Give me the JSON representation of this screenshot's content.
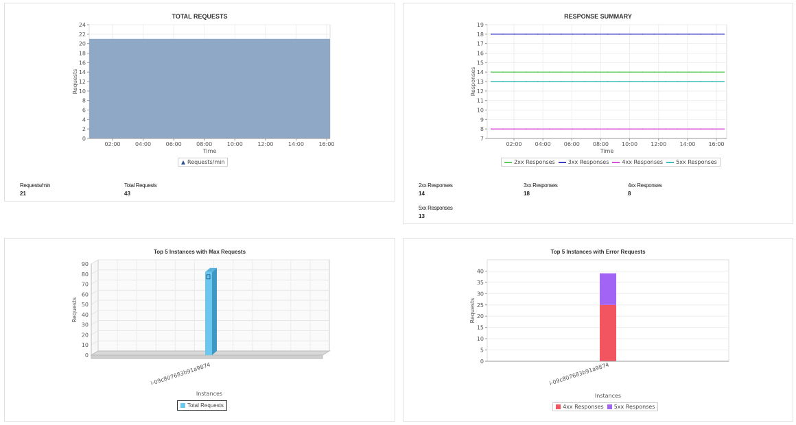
{
  "panels": {
    "total_requests": {
      "title": "TOTAL REQUESTS",
      "legend": "Requests/min",
      "stats": [
        {
          "label": "Requests/min",
          "value": "21"
        },
        {
          "label": "Total Requests",
          "value": "43"
        }
      ]
    },
    "response_summary": {
      "title": "RESPONSE SUMMARY",
      "legend": [
        "2xx Responses",
        "3xx Responses",
        "4xx Responses",
        "5xx Responses"
      ],
      "stats": [
        {
          "label": "2xx Responses",
          "value": "14"
        },
        {
          "label": "3xx Responses",
          "value": "18"
        },
        {
          "label": "4xx Responses",
          "value": "8"
        },
        {
          "label": "5xx Responses",
          "value": "13"
        }
      ]
    },
    "max_requests": {
      "title": "Top 5 Instances with Max Requests",
      "legend": "Total Requests"
    },
    "error_requests": {
      "title": "Top 5 Instances with Error Requests",
      "legend": [
        "4xx Responses",
        "5xx Responses"
      ]
    }
  },
  "colors": {
    "area": "#8fa8c5",
    "c2xx": "#5ccd5c",
    "c3xx": "#3d3dc8",
    "c4xx": "#d94fd9",
    "c5xx": "#40bdb8",
    "bar3d": "#6cc7ef",
    "err4xx": "#f2555f",
    "err5xx": "#a264f5"
  },
  "chart_data": [
    {
      "type": "area",
      "title": "TOTAL REQUESTS",
      "xlabel": "Time",
      "ylabel": "Requests",
      "x_ticks": [
        "02:00",
        "04:00",
        "06:00",
        "08:00",
        "10:00",
        "12:00",
        "14:00",
        "16:00"
      ],
      "ylim": [
        0,
        24
      ],
      "y_ticks": [
        0,
        2,
        4,
        6,
        8,
        10,
        12,
        14,
        16,
        18,
        20,
        22,
        24
      ],
      "series": [
        {
          "name": "Requests/min",
          "value": 21
        }
      ],
      "grid": true,
      "legend": "bottom"
    },
    {
      "type": "line",
      "title": "RESPONSE SUMMARY",
      "xlabel": "Time",
      "ylabel": "Responses",
      "x_ticks": [
        "02:00",
        "04:00",
        "06:00",
        "08:00",
        "10:00",
        "12:00",
        "14:00",
        "16:00"
      ],
      "ylim": [
        7,
        19
      ],
      "y_ticks": [
        7,
        8,
        9,
        10,
        11,
        12,
        13,
        14,
        15,
        16,
        17,
        18,
        19
      ],
      "series": [
        {
          "name": "2xx Responses",
          "value": 14
        },
        {
          "name": "3xx Responses",
          "value": 18
        },
        {
          "name": "4xx Responses",
          "value": 8
        },
        {
          "name": "5xx Responses",
          "value": 13
        }
      ],
      "grid": true,
      "legend": "bottom"
    },
    {
      "type": "bar",
      "title": "Top 5 Instances with Max Requests",
      "xlabel": "Instances",
      "ylabel": "Requests",
      "categories": [
        "i-09c807683b91a9874"
      ],
      "series": [
        {
          "name": "Total Requests",
          "values": [
            82
          ]
        }
      ],
      "ylim": [
        0,
        90
      ],
      "y_ticks": [
        0,
        10,
        20,
        30,
        40,
        50,
        60,
        70,
        80,
        90
      ],
      "legend": "bottom"
    },
    {
      "type": "bar",
      "title": "Top 5 Instances with Error Requests",
      "xlabel": "Instances",
      "ylabel": "Requests",
      "stacked": true,
      "categories": [
        "i-09c807683b91a9874"
      ],
      "series": [
        {
          "name": "4xx Responses",
          "values": [
            25
          ]
        },
        {
          "name": "5xx Responses",
          "values": [
            14
          ]
        }
      ],
      "ylim": [
        0,
        45
      ],
      "y_ticks": [
        0,
        5,
        10,
        15,
        20,
        25,
        30,
        35,
        40
      ],
      "legend": "bottom"
    }
  ]
}
